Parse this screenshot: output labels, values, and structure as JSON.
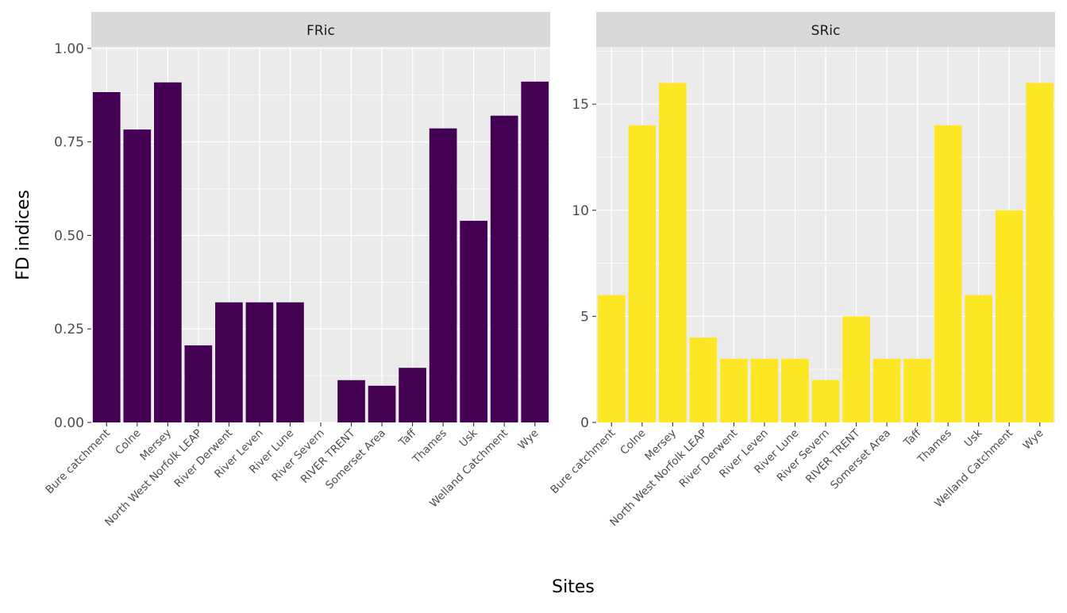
{
  "chart_data": {
    "type": "bar",
    "xlabel": "Sites",
    "ylabel": "FD indices",
    "categories": [
      "Bure catchment",
      "Colne",
      "Mersey",
      "North West Norfolk LEAP",
      "River Derwent",
      "River Leven",
      "River Lune",
      "River Severn",
      "RIVER TRENT",
      "Somerset Area",
      "Taff",
      "Thames",
      "Usk",
      "Welland Catchment",
      "Wye"
    ],
    "grid": true,
    "panels": [
      {
        "name": "FRic",
        "color": "#440154",
        "values": [
          0.883,
          0.783,
          0.909,
          0.206,
          0.321,
          0.321,
          0.321,
          0,
          0.113,
          0.098,
          0.146,
          0.786,
          0.539,
          0.82,
          0.911
        ],
        "ylim": [
          0,
          1.004
        ],
        "yticks": [
          0,
          0.25,
          0.5,
          0.75,
          1.0
        ],
        "ytick_labels": [
          "0.00",
          "0.25",
          "0.50",
          "0.75",
          "1.00"
        ]
      },
      {
        "name": "SRic",
        "color": "#FDE725",
        "values": [
          6,
          14,
          16,
          4,
          3,
          3,
          3,
          2,
          5,
          3,
          3,
          14,
          6,
          10,
          16
        ],
        "ylim": [
          0,
          17.7
        ],
        "yticks": [
          0,
          5,
          10,
          15
        ],
        "ytick_labels": [
          "0",
          "5",
          "10",
          "15"
        ]
      }
    ]
  }
}
